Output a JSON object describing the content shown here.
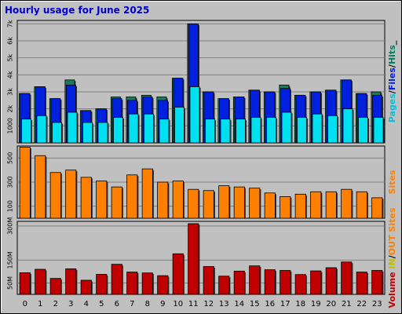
{
  "chart_data": {
    "type": "bar",
    "title": "Hourly usage for June 2025",
    "x": [
      "0",
      "1",
      "2",
      "3",
      "4",
      "5",
      "6",
      "7",
      "8",
      "9",
      "10",
      "11",
      "12",
      "13",
      "14",
      "15",
      "16",
      "17",
      "18",
      "19",
      "20",
      "21",
      "22",
      "23"
    ],
    "panels": [
      {
        "name": "hits-files-pages",
        "y_ticks": [
          "1000",
          "2k",
          "3k",
          "4k",
          "5k",
          "6k",
          "7k"
        ],
        "y_tick_values": [
          1000,
          2000,
          3000,
          4000,
          5000,
          6000,
          7000
        ],
        "ylim": [
          0,
          7200
        ],
        "legend": [
          "Pages",
          "/",
          "Files",
          "/",
          "Hits",
          "_"
        ],
        "legend_colors": [
          "#00c0e0",
          "#000000",
          "#0020e0",
          "#000000",
          "#008060",
          "#000000"
        ],
        "series": [
          {
            "name": "Hits",
            "color": "#1e7a5a",
            "values": [
              2900,
              3300,
              2600,
              3700,
              1900,
              2000,
              2700,
              2700,
              2800,
              2700,
              3800,
              7000,
              3000,
              2600,
              2700,
              3100,
              3000,
              3400,
              2800,
              3000,
              3100,
              3700,
              2900,
              3000
            ]
          },
          {
            "name": "Files",
            "color": "#0020e0",
            "values": [
              2900,
              3300,
              2600,
              3400,
              1900,
              2000,
              2600,
              2500,
              2700,
              2500,
              3800,
              7000,
              3000,
              2600,
              2700,
              3100,
              3000,
              3200,
              2800,
              3000,
              3100,
              3700,
              2900,
              2800
            ]
          },
          {
            "name": "Pages",
            "color": "#00e0f0",
            "values": [
              1400,
              1600,
              1200,
              1800,
              1200,
              1200,
              1500,
              1700,
              1700,
              1400,
              2100,
              3300,
              1400,
              1400,
              1400,
              1500,
              1500,
              1800,
              1500,
              1700,
              1600,
              2000,
              1500,
              1500
            ]
          }
        ]
      },
      {
        "name": "sites",
        "y_ticks": [
          "100",
          "300",
          "500"
        ],
        "y_tick_values": [
          100,
          300,
          500
        ],
        "ylim": [
          0,
          600
        ],
        "legend": [
          "Sites"
        ],
        "legend_colors": [
          "#ff8000"
        ],
        "series": [
          {
            "name": "Sites",
            "color": "#ff8000",
            "values": [
              590,
              520,
              380,
              400,
              340,
              310,
              260,
              360,
              410,
              300,
              310,
              240,
              230,
              270,
              260,
              250,
              210,
              180,
              200,
              220,
              220,
              240,
              220,
              170
            ]
          }
        ]
      },
      {
        "name": "volume",
        "y_ticks": [
          "50M",
          "150M",
          "300M"
        ],
        "y_tick_values": [
          50,
          150,
          300
        ],
        "ylim": [
          0,
          320
        ],
        "legend": [
          "Volume",
          " ",
          "IN",
          "/",
          "OUT",
          " ",
          "Sites"
        ],
        "legend_colors": [
          "#c00000",
          "#000000",
          "#c0c000",
          "#000000",
          "#ff8000",
          "#000000",
          "#ff8000"
        ],
        "series": [
          {
            "name": "Volume",
            "color": "#c00000",
            "values": [
              95,
              110,
              70,
              112,
              62,
              88,
              132,
              98,
              94,
              82,
              178,
              310,
              122,
              80,
              102,
              125,
              108,
              105,
              87,
              103,
              117,
              142,
              98,
              105
            ]
          }
        ]
      }
    ]
  }
}
